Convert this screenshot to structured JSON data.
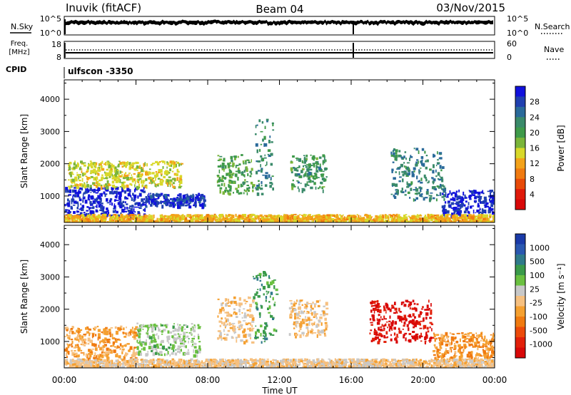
{
  "header": {
    "station": "Inuvik (fitACF)",
    "beam": "Beam 04",
    "date": "03/Nov/2015"
  },
  "noise_panel": {
    "left_label": "N.Sky",
    "right_label": "N.Search",
    "left_ticks": [
      "10^5",
      "10^0"
    ],
    "right_ticks": [
      "10^5",
      "10^0"
    ]
  },
  "freq_panel": {
    "left_label_1": "Freq.",
    "left_label_2": "[MHz]",
    "right_label": "Nave",
    "left_ticks": [
      "18",
      "8"
    ],
    "right_ticks": [
      "60",
      "0"
    ]
  },
  "cpid": {
    "label": "CPID",
    "value": "ulfscon -3350"
  },
  "axes": {
    "ylabel": "Slant Range [km]",
    "xlabel": "Time UT",
    "ytick_labels": [
      "1000",
      "2000",
      "3000",
      "4000"
    ],
    "xtick_labels": [
      "00:00",
      "04:00",
      "08:00",
      "12:00",
      "16:00",
      "20:00",
      "00:00"
    ]
  },
  "power_colorbar": {
    "label": "Power [dB]",
    "ticks": [
      "4",
      "8",
      "12",
      "16",
      "20",
      "24",
      "28"
    ],
    "colors": [
      "#1111dd",
      "#2040b0",
      "#2a6a9a",
      "#3a8a6a",
      "#3f9a4a",
      "#7ab53a",
      "#d8d82a",
      "#f3a21a",
      "#f07a10",
      "#e84a08",
      "#e01a0a",
      "#d80808"
    ]
  },
  "velocity_colorbar": {
    "label": "Velocity [m s⁻¹]",
    "ticks": [
      "1000",
      "500",
      "100",
      "25",
      "-25",
      "-100",
      "-500",
      "-1000"
    ],
    "colors": [
      "#1a3aa8",
      "#2a58b0",
      "#2f7a8a",
      "#3a9a4a",
      "#6ac040",
      "#c8c8c8",
      "#f6c080",
      "#f5a030",
      "#f07a10",
      "#ec4a0a",
      "#e2200a",
      "#d80808"
    ]
  },
  "chart_data": [
    {
      "type": "line",
      "title": "Inuvik (fitACF)",
      "xlabel": "",
      "ylabel": "N.Sky",
      "y_scale": "log",
      "ylim": [
        1,
        100000
      ],
      "x": [
        "00:00",
        "04:00",
        "08:00",
        "12:00",
        "16:00",
        "20:00",
        "00:00"
      ],
      "series": [
        {
          "values": [
            12000,
            20000,
            15000,
            22000,
            18000,
            9000,
            30000
          ]
        }
      ]
    },
    {
      "type": "scatter",
      "xlabel": "",
      "ylabel": "Freq. [MHz]",
      "ylim": [
        8,
        18
      ],
      "x": [
        "00:00",
        "04:00",
        "08:00",
        "12:00",
        "16:00",
        "20:00",
        "00:00"
      ],
      "series": [
        {
          "values": [
            11,
            11,
            11,
            11,
            11,
            11,
            11
          ]
        }
      ]
    },
    {
      "type": "heatmap",
      "title": "",
      "xlabel": "Time UT",
      "ylabel": "Slant Range [km]",
      "ylim": [
        180,
        4600
      ],
      "xlim_hours": [
        0,
        24
      ],
      "grid": false,
      "colorbar": "Power [dB]",
      "value_range": [
        0,
        30
      ],
      "regions": [
        {
          "t0": 0.0,
          "t1": 4.5,
          "r0": 400,
          "r1": 1300,
          "value": 28
        },
        {
          "t0": 0.2,
          "t1": 6.5,
          "r0": 1300,
          "r1": 2100,
          "value": 14
        },
        {
          "t0": 4.5,
          "t1": 7.8,
          "r0": 700,
          "r1": 1100,
          "value": 27
        },
        {
          "t0": 8.5,
          "t1": 10.5,
          "r0": 1100,
          "r1": 2300,
          "value": 18
        },
        {
          "t0": 10.6,
          "t1": 11.6,
          "r0": 1000,
          "r1": 3400,
          "value": 22
        },
        {
          "t0": 12.6,
          "t1": 14.6,
          "r0": 1200,
          "r1": 2300,
          "value": 20
        },
        {
          "t0": 18.2,
          "t1": 21.2,
          "r0": 900,
          "r1": 2500,
          "value": 22
        },
        {
          "t0": 21.0,
          "t1": 24.0,
          "r0": 400,
          "r1": 1200,
          "value": 28
        },
        {
          "t0": 0.0,
          "t1": 24.0,
          "r0": 200,
          "r1": 450,
          "value": 12
        }
      ]
    },
    {
      "type": "heatmap",
      "title": "",
      "xlabel": "Time UT",
      "ylabel": "Slant Range [km]",
      "ylim": [
        180,
        4600
      ],
      "xlim_hours": [
        0,
        24
      ],
      "grid": false,
      "colorbar": "Velocity [m s⁻¹]",
      "value_range": [
        -1000,
        1000
      ],
      "regions": [
        {
          "t0": 0.0,
          "t1": 4.0,
          "r0": 500,
          "r1": 1500,
          "value": -250
        },
        {
          "t0": 4.0,
          "t1": 7.5,
          "r0": 600,
          "r1": 1600,
          "value": 200
        },
        {
          "t0": 8.5,
          "t1": 10.5,
          "r0": 1000,
          "r1": 2400,
          "value": -100
        },
        {
          "t0": 10.5,
          "t1": 11.8,
          "r0": 1000,
          "r1": 3200,
          "value": 400
        },
        {
          "t0": 12.5,
          "t1": 14.6,
          "r0": 1200,
          "r1": 2300,
          "value": -80
        },
        {
          "t0": 17.0,
          "t1": 20.5,
          "r0": 1000,
          "r1": 2300,
          "value": -900
        },
        {
          "t0": 20.5,
          "t1": 24.0,
          "r0": 500,
          "r1": 1300,
          "value": -300
        },
        {
          "t0": 0.0,
          "t1": 24.0,
          "r0": 200,
          "r1": 480,
          "value": -60
        }
      ]
    }
  ]
}
